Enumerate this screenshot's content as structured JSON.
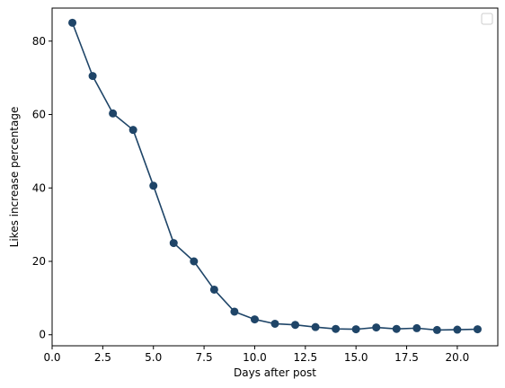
{
  "chart_data": {
    "type": "line",
    "title": "",
    "xlabel": "Days after post",
    "ylabel": "Likes increase percentage",
    "xlim": [
      0,
      22
    ],
    "ylim": [
      -3,
      89
    ],
    "xticks": [
      0.0,
      2.5,
      5.0,
      7.5,
      10.0,
      12.5,
      15.0,
      17.5,
      20.0
    ],
    "xtick_labels": [
      "0.0",
      "2.5",
      "5.0",
      "7.5",
      "10.0",
      "12.5",
      "15.0",
      "17.5",
      "20.0"
    ],
    "yticks": [
      0,
      20,
      40,
      60,
      80
    ],
    "ytick_labels": [
      "0",
      "20",
      "40",
      "60",
      "80"
    ],
    "grid": false,
    "legend": {
      "location": "upper right",
      "entries": []
    },
    "colors": {
      "series": "#1f4568",
      "axes": "#000000",
      "background": "#ffffff"
    },
    "series": [
      {
        "x": [
          1,
          2,
          3,
          4,
          5,
          6,
          7,
          8,
          9,
          10,
          11,
          12,
          13,
          14,
          15,
          16,
          17,
          18,
          19,
          20,
          21
        ],
        "y": [
          85,
          70.5,
          60.3,
          55.8,
          40.6,
          25.0,
          20.0,
          12.3,
          6.3,
          4.2,
          3.0,
          2.7,
          2.1,
          1.6,
          1.5,
          2.0,
          1.6,
          1.8,
          1.3,
          1.4,
          1.5
        ],
        "marker": "circle"
      }
    ]
  }
}
